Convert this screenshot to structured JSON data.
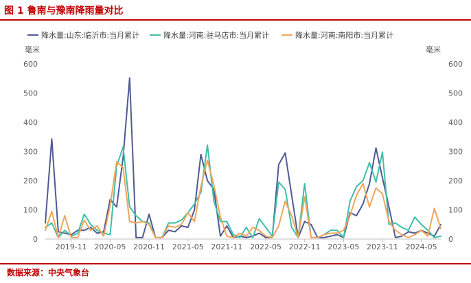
{
  "figure": {
    "title": "图 1 鲁南与豫南降雨量对比",
    "source": "数据来源：中央气象台"
  },
  "chart_data": {
    "type": "line",
    "y_unit_left": "毫米",
    "y_unit_right": "毫米",
    "ylim": [
      0,
      600
    ],
    "yticks": [
      0,
      100,
      200,
      300,
      400,
      500,
      600
    ],
    "x_start": "2019-07",
    "x_labels": [
      "2019-11",
      "2020-05",
      "2020-11",
      "2021-05",
      "2021-11",
      "2022-05",
      "2022-11",
      "2023-05",
      "2023-11",
      "2024-05"
    ],
    "legend_position": "top",
    "grid": false,
    "series": [
      {
        "name": "降水量:山东:临沂市:当月累计",
        "color": "#4e5a92",
        "values": [
          55,
          343,
          25,
          20,
          15,
          30,
          30,
          40,
          20,
          25,
          135,
          110,
          280,
          552,
          5,
          5,
          85,
          5,
          5,
          30,
          25,
          45,
          40,
          100,
          290,
          200,
          170,
          10,
          45,
          5,
          10,
          5,
          10,
          20,
          5,
          5,
          255,
          295,
          150,
          5,
          60,
          50,
          5,
          5,
          10,
          15,
          5,
          90,
          80,
          120,
          190,
          312,
          210,
          110,
          5,
          10,
          25,
          20,
          30,
          20,
          10,
          50
        ]
      },
      {
        "name": "降水量:河南:驻马店市:当月累计",
        "color": "#3dbfa8",
        "values": [
          40,
          55,
          5,
          30,
          10,
          20,
          85,
          50,
          30,
          20,
          15,
          250,
          315,
          110,
          80,
          60,
          55,
          5,
          5,
          55,
          55,
          65,
          90,
          120,
          160,
          322,
          130,
          60,
          60,
          15,
          5,
          40,
          5,
          70,
          40,
          10,
          195,
          170,
          40,
          5,
          190,
          5,
          5,
          15,
          30,
          30,
          5,
          130,
          180,
          200,
          262,
          195,
          298,
          50,
          55,
          40,
          30,
          75,
          50,
          30,
          5,
          10
        ]
      },
      {
        "name": "降水量:河南:南阳市:当月累计",
        "color": "#f1a45c",
        "values": [
          30,
          95,
          5,
          80,
          5,
          5,
          65,
          30,
          45,
          10,
          115,
          265,
          245,
          60,
          55,
          60,
          50,
          5,
          5,
          45,
          40,
          50,
          90,
          60,
          180,
          270,
          185,
          75,
          10,
          5,
          20,
          10,
          40,
          30,
          10,
          5,
          45,
          130,
          80,
          5,
          145,
          5,
          5,
          15,
          20,
          20,
          30,
          80,
          150,
          190,
          110,
          175,
          155,
          60,
          30,
          15,
          5,
          15,
          30,
          10,
          105,
          35
        ]
      }
    ]
  }
}
